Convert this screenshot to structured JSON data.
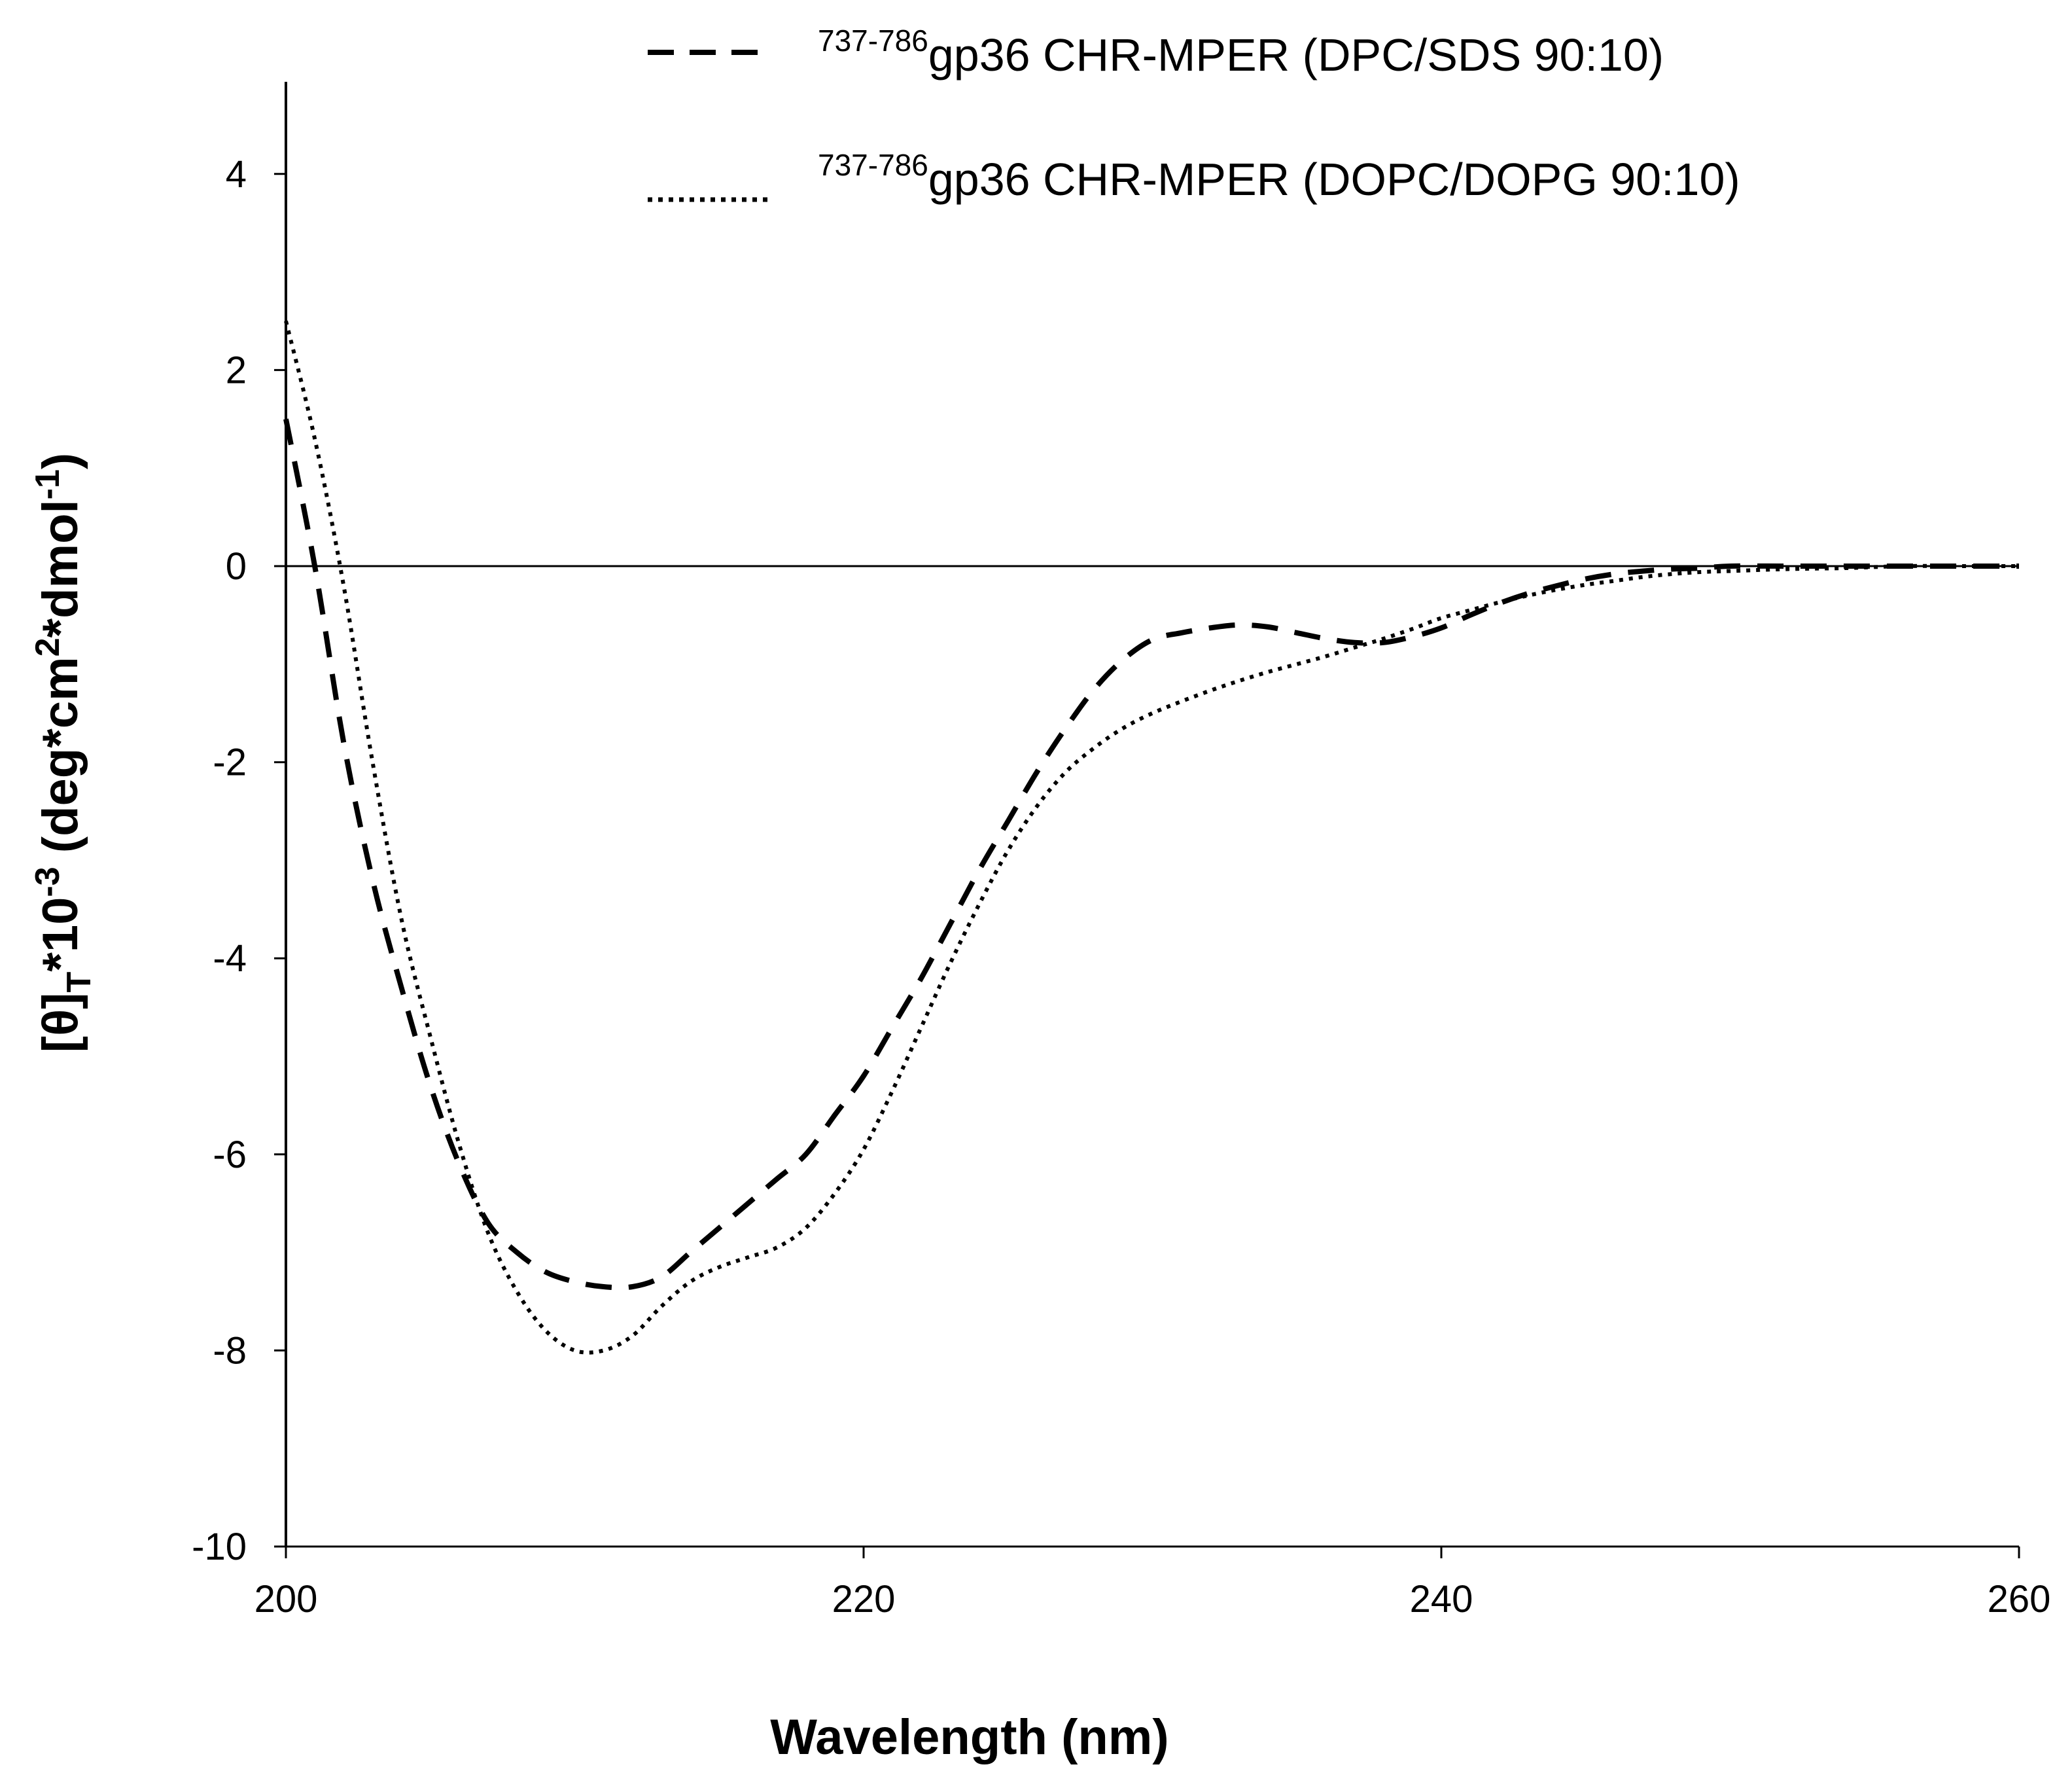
{
  "chart_data": {
    "type": "line",
    "xlabel": "Wavelength (nm)",
    "ylabel": {
      "base": "[θ]",
      "sub": "T",
      "mid": "*10",
      "exp": "-3",
      "unit_open": " (deg*cm",
      "unit_exp": "2",
      "unit_mid": "*dmol",
      "unit_exp2": "-1",
      "unit_close": ")"
    },
    "xlim": [
      200,
      260
    ],
    "ylim": [
      -10,
      5
    ],
    "xticks": [
      "200",
      "220",
      "240",
      "260"
    ],
    "xtick_values": [
      200,
      220,
      240,
      260
    ],
    "yticks": [
      "4",
      "2",
      "0",
      "-2",
      "-4",
      "-6",
      "-8",
      "-10"
    ],
    "ytick_values": [
      4,
      2,
      0,
      -2,
      -4,
      -6,
      -8,
      -10
    ],
    "zero_line": true,
    "legend_position": "top-right",
    "series": [
      {
        "name": "DPC/SDS",
        "legend_sup": "737-786",
        "legend_main": "gp36  CHR-MPER (DPC/SDS 90:10)",
        "style": "dashed",
        "x": [
          200,
          201,
          202,
          203,
          204,
          205,
          206,
          207,
          208,
          209,
          210,
          211,
          212,
          213,
          214,
          215,
          216,
          217,
          218,
          219,
          220,
          221,
          222,
          223,
          224,
          225,
          226,
          227,
          228,
          229,
          230,
          231,
          232,
          233,
          234,
          235,
          236,
          237,
          238,
          239,
          240,
          241,
          242,
          243,
          244,
          245,
          246,
          247,
          248,
          249,
          250,
          252,
          254,
          256,
          258,
          260
        ],
        "y": [
          1.5,
          0.0,
          -1.8,
          -3.2,
          -4.3,
          -5.3,
          -6.1,
          -6.7,
          -7.0,
          -7.2,
          -7.3,
          -7.35,
          -7.35,
          -7.25,
          -7.0,
          -6.75,
          -6.5,
          -6.25,
          -6.0,
          -5.6,
          -5.2,
          -4.7,
          -4.2,
          -3.65,
          -3.1,
          -2.6,
          -2.1,
          -1.65,
          -1.25,
          -0.95,
          -0.75,
          -0.68,
          -0.63,
          -0.6,
          -0.62,
          -0.68,
          -0.74,
          -0.78,
          -0.78,
          -0.72,
          -0.63,
          -0.5,
          -0.38,
          -0.28,
          -0.2,
          -0.13,
          -0.08,
          -0.05,
          -0.03,
          -0.02,
          0.0,
          0.0,
          0.0,
          0.0,
          0.0,
          0.0
        ]
      },
      {
        "name": "DOPC/DOPG",
        "legend_sup": "737-786",
        "legend_main": "gp36  CHR-MPER (DOPC/DOPG 90:10)",
        "style": "dotted",
        "x": [
          200,
          201,
          202,
          203,
          204,
          205,
          206,
          207,
          208,
          209,
          210,
          211,
          212,
          213,
          214,
          215,
          216,
          217,
          218,
          219,
          220,
          221,
          222,
          223,
          224,
          225,
          226,
          227,
          228,
          229,
          230,
          231,
          232,
          233,
          234,
          235,
          236,
          237,
          238,
          239,
          240,
          241,
          242,
          243,
          244,
          245,
          246,
          247,
          248,
          249,
          250,
          252,
          254,
          256,
          258,
          260
        ],
        "y": [
          2.5,
          1.3,
          -0.2,
          -2.0,
          -3.6,
          -4.8,
          -5.9,
          -6.8,
          -7.4,
          -7.8,
          -8.0,
          -8.0,
          -7.85,
          -7.55,
          -7.3,
          -7.15,
          -7.05,
          -6.95,
          -6.75,
          -6.4,
          -5.95,
          -5.35,
          -4.7,
          -4.05,
          -3.45,
          -2.9,
          -2.45,
          -2.1,
          -1.85,
          -1.65,
          -1.5,
          -1.38,
          -1.27,
          -1.17,
          -1.08,
          -1.0,
          -0.92,
          -0.83,
          -0.74,
          -0.64,
          -0.53,
          -0.45,
          -0.37,
          -0.3,
          -0.24,
          -0.19,
          -0.15,
          -0.11,
          -0.08,
          -0.06,
          -0.05,
          -0.03,
          -0.02,
          0.0,
          0.0,
          0.0
        ]
      }
    ]
  }
}
